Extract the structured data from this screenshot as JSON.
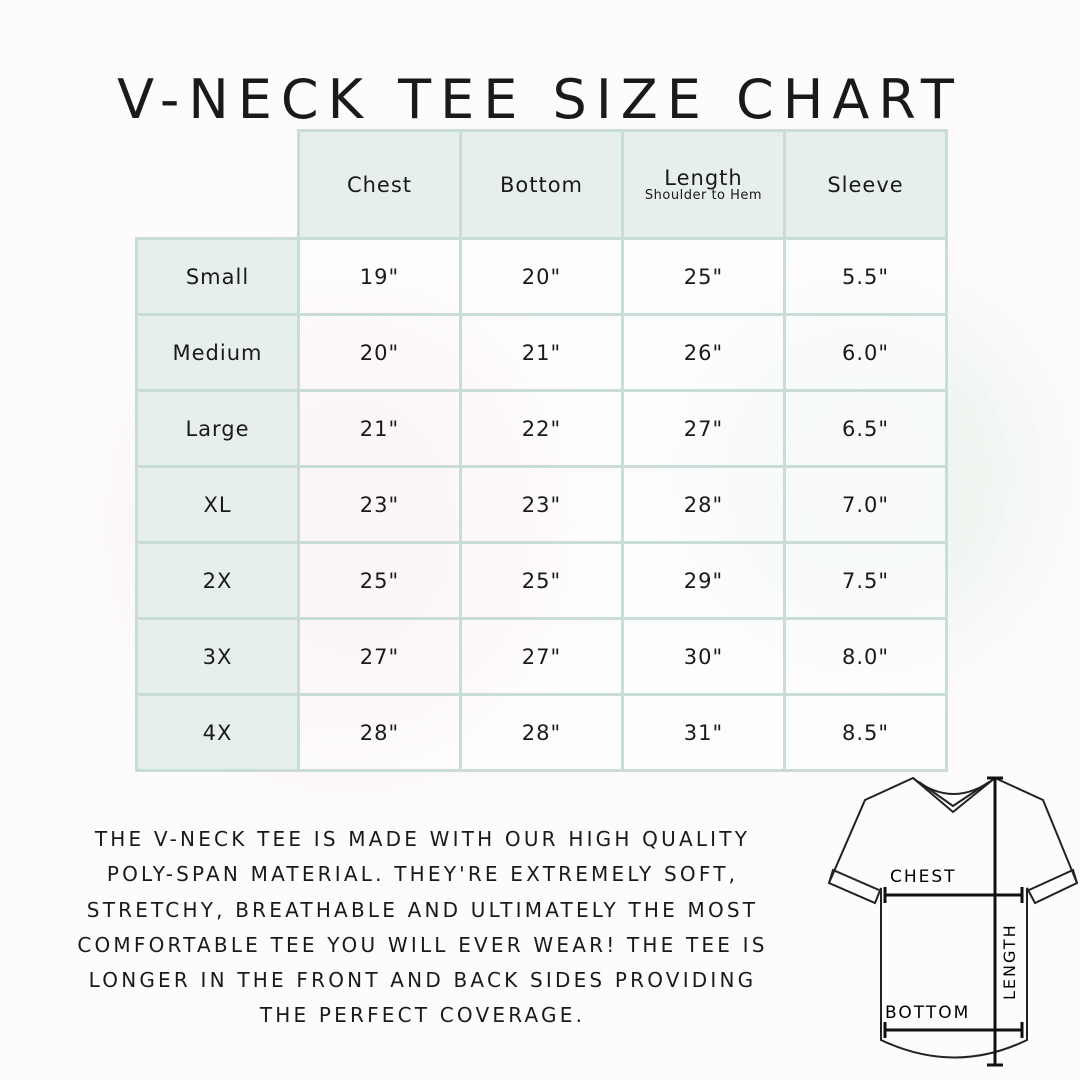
{
  "title": "V-Neck Tee Size Chart",
  "table": {
    "columns": [
      {
        "label": "Chest",
        "sublabel": ""
      },
      {
        "label": "Bottom",
        "sublabel": ""
      },
      {
        "label": "Length",
        "sublabel": "Shoulder to Hem"
      },
      {
        "label": "Sleeve",
        "sublabel": ""
      }
    ],
    "rows": [
      {
        "size": "Small",
        "values": [
          "19\"",
          "20\"",
          "25\"",
          "5.5\""
        ]
      },
      {
        "size": "Medium",
        "values": [
          "20\"",
          "21\"",
          "26\"",
          "6.0\""
        ]
      },
      {
        "size": "Large",
        "values": [
          "21\"",
          "22\"",
          "27\"",
          "6.5\""
        ]
      },
      {
        "size": "XL",
        "values": [
          "23\"",
          "23\"",
          "28\"",
          "7.0\""
        ]
      },
      {
        "size": "2X",
        "values": [
          "25\"",
          "25\"",
          "29\"",
          "7.5\""
        ]
      },
      {
        "size": "3X",
        "values": [
          "27\"",
          "27\"",
          "30\"",
          "8.0\""
        ]
      },
      {
        "size": "4X",
        "values": [
          "28\"",
          "28\"",
          "31\"",
          "8.5\""
        ]
      }
    ]
  },
  "description": {
    "lines": [
      "The V-neck tee is made with our high quality",
      "poly-span material. They're extremely soft,",
      "stretchy, breathable and ultimately the most",
      "comfortable tee you will ever wear! The tee is",
      "longer in the front and back sides providing",
      "the perfect coverage."
    ]
  },
  "diagram": {
    "chest_label": "CHEST",
    "bottom_label": "BOTTOM",
    "length_label": "LENGTH"
  },
  "colors": {
    "border": "#c9ddd5",
    "header_fill": "#e6efeb",
    "text": "#1a1a1a"
  }
}
